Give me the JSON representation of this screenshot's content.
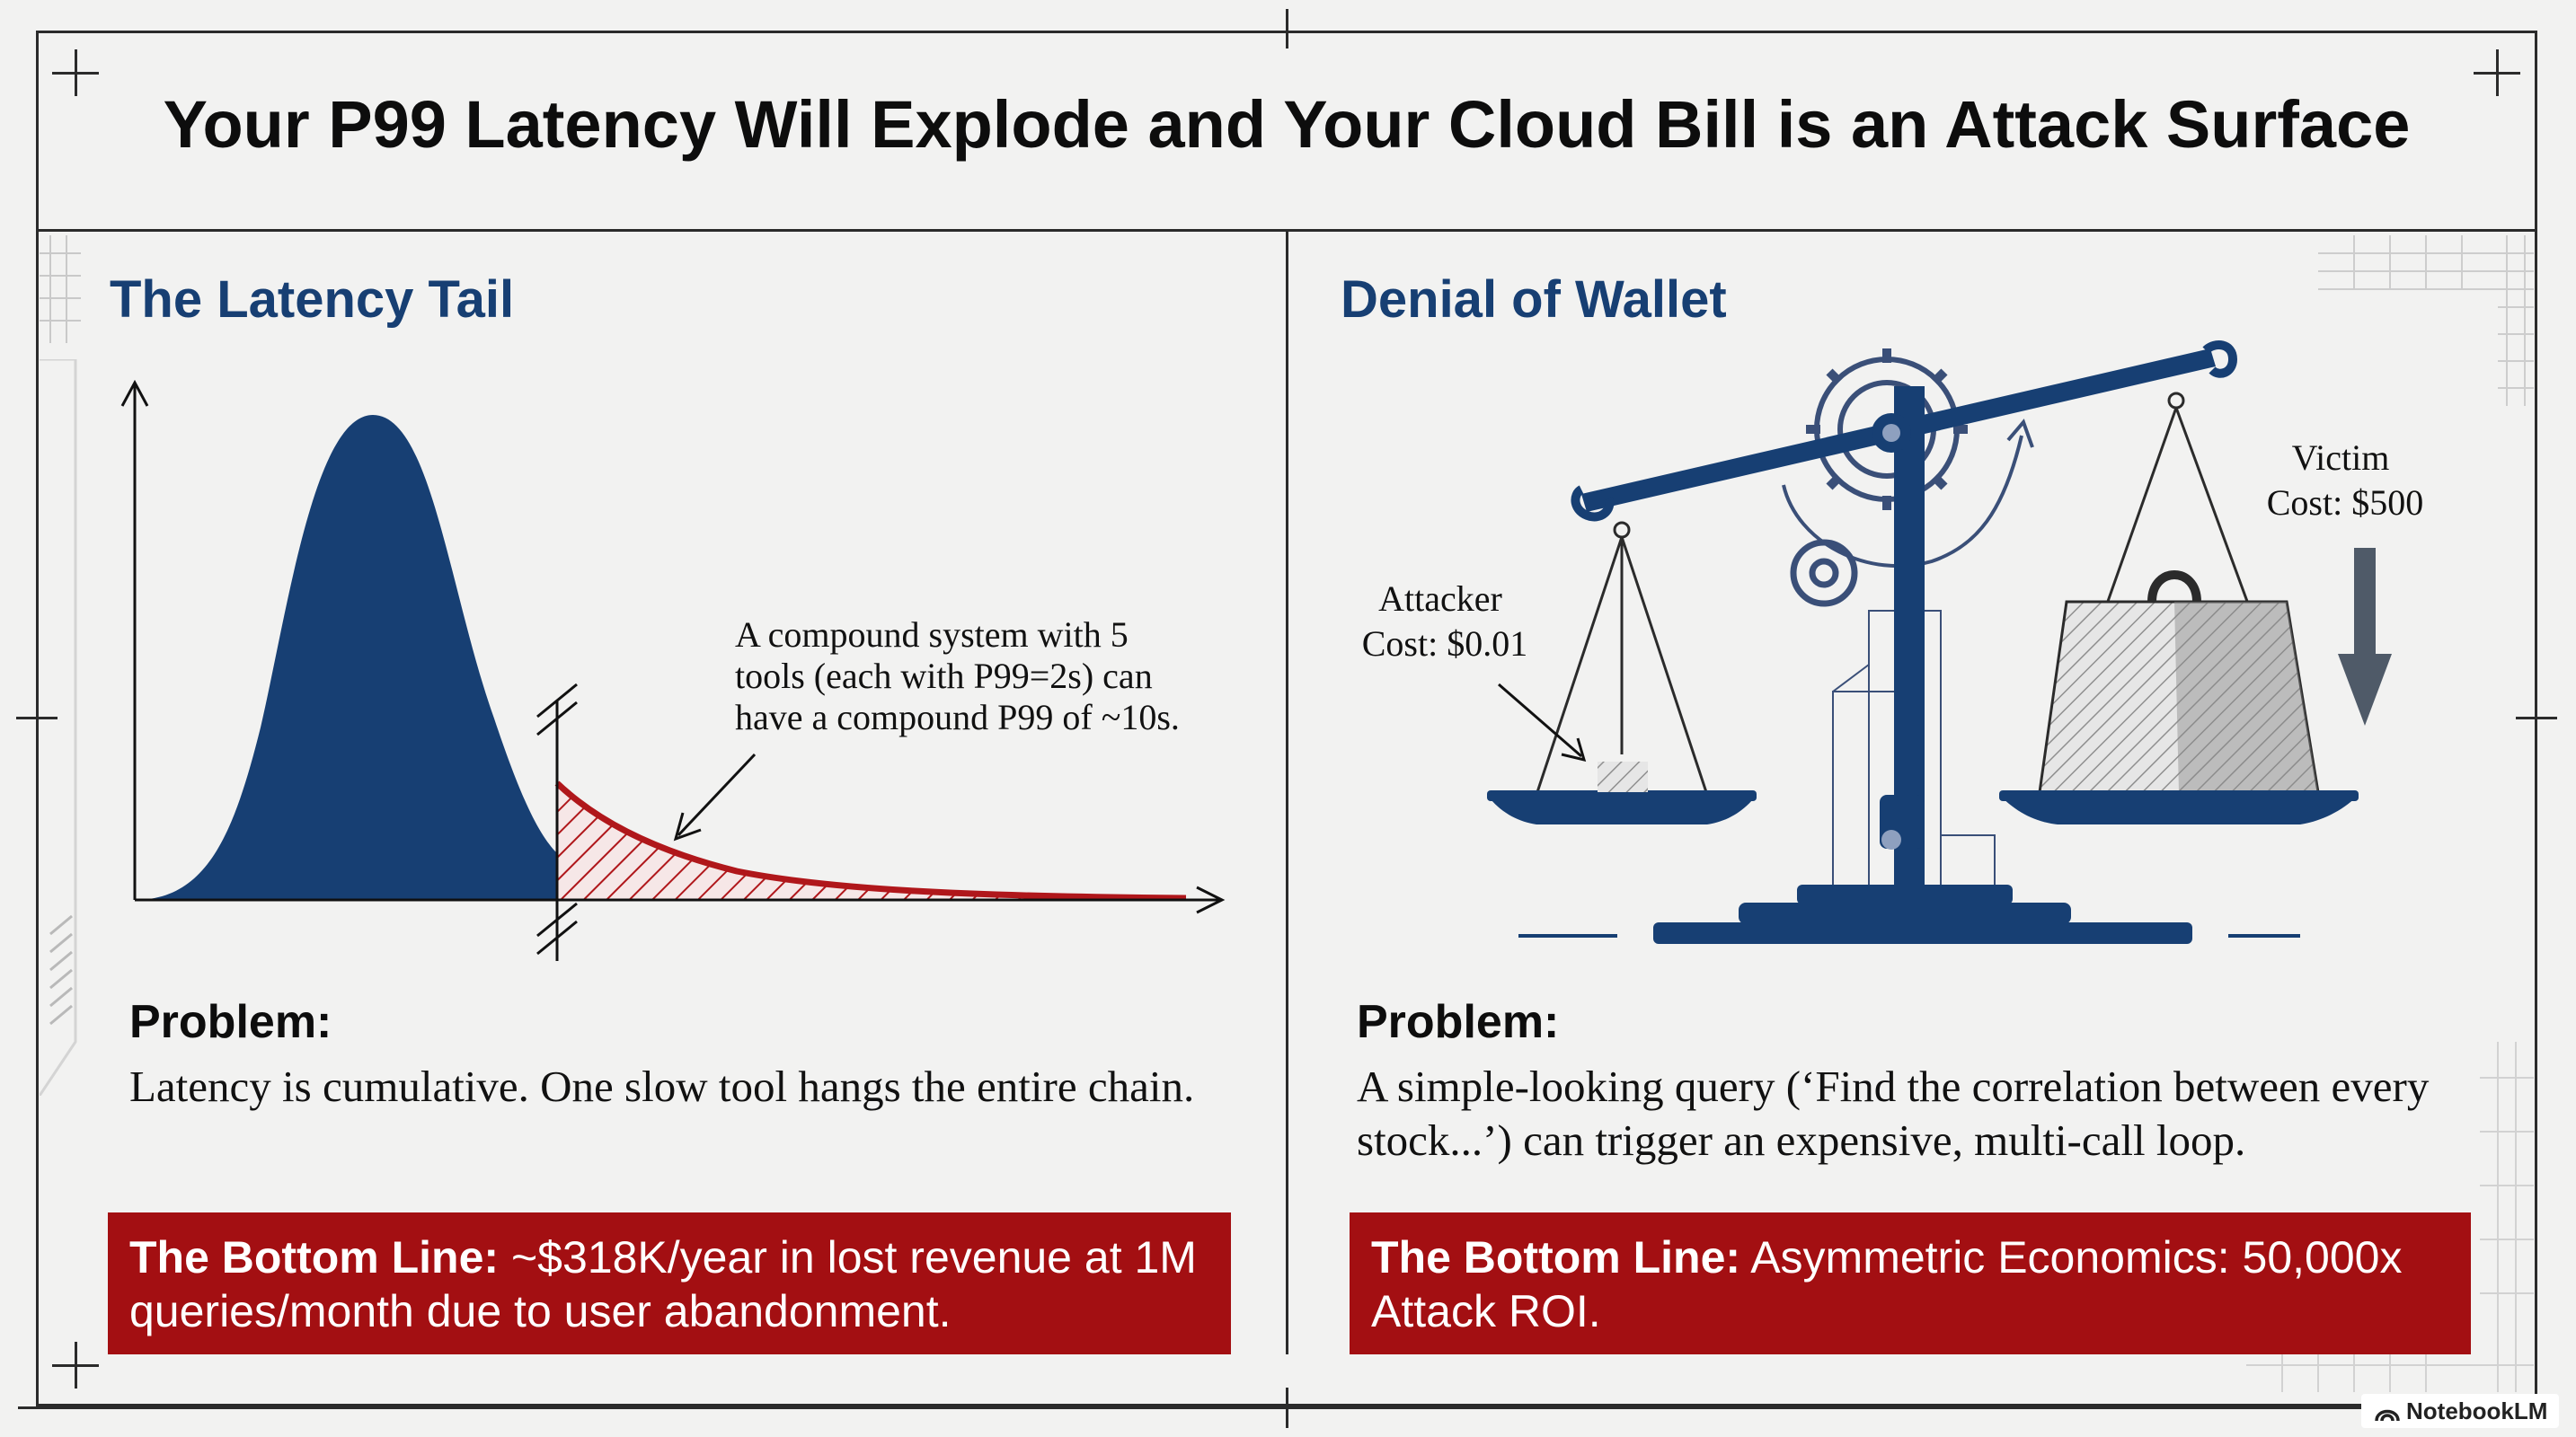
{
  "title": "Your P99 Latency Will Explode and Your Cloud Bill is an Attack Surface",
  "left": {
    "heading": "The Latency Tail",
    "annotation_lines": [
      "A compound system with 5",
      "tools (each with P99=2s) can",
      "have a compound P99 of ~10s."
    ],
    "problem_label": "Problem:",
    "problem_text": "Latency is cumulative. One slow tool hangs the entire chain.",
    "bottom_label": "The Bottom Line:",
    "bottom_text": "~$318K/year in lost revenue at 1M queries/month due to user abandonment.",
    "colors": {
      "body": "#173f73",
      "tail": "#b0171b"
    }
  },
  "right": {
    "heading": "Denial of Wallet",
    "attacker_lines": [
      "Attacker",
      "Cost: $0.01"
    ],
    "victim_lines": [
      "Victim",
      "Cost: $500"
    ],
    "problem_label": "Problem:",
    "problem_text": "A simple-looking query (‘Find the correlation between every stock...’) can trigger an expensive, multi-call loop.",
    "bottom_label": "The Bottom Line:",
    "bottom_text": "Asymmetric Economics: 50,000x Attack ROI."
  },
  "brand": "NotebookLM",
  "colors": {
    "accent_red": "#a30f12",
    "navy": "#173f73",
    "background": "#f2f2f1"
  }
}
